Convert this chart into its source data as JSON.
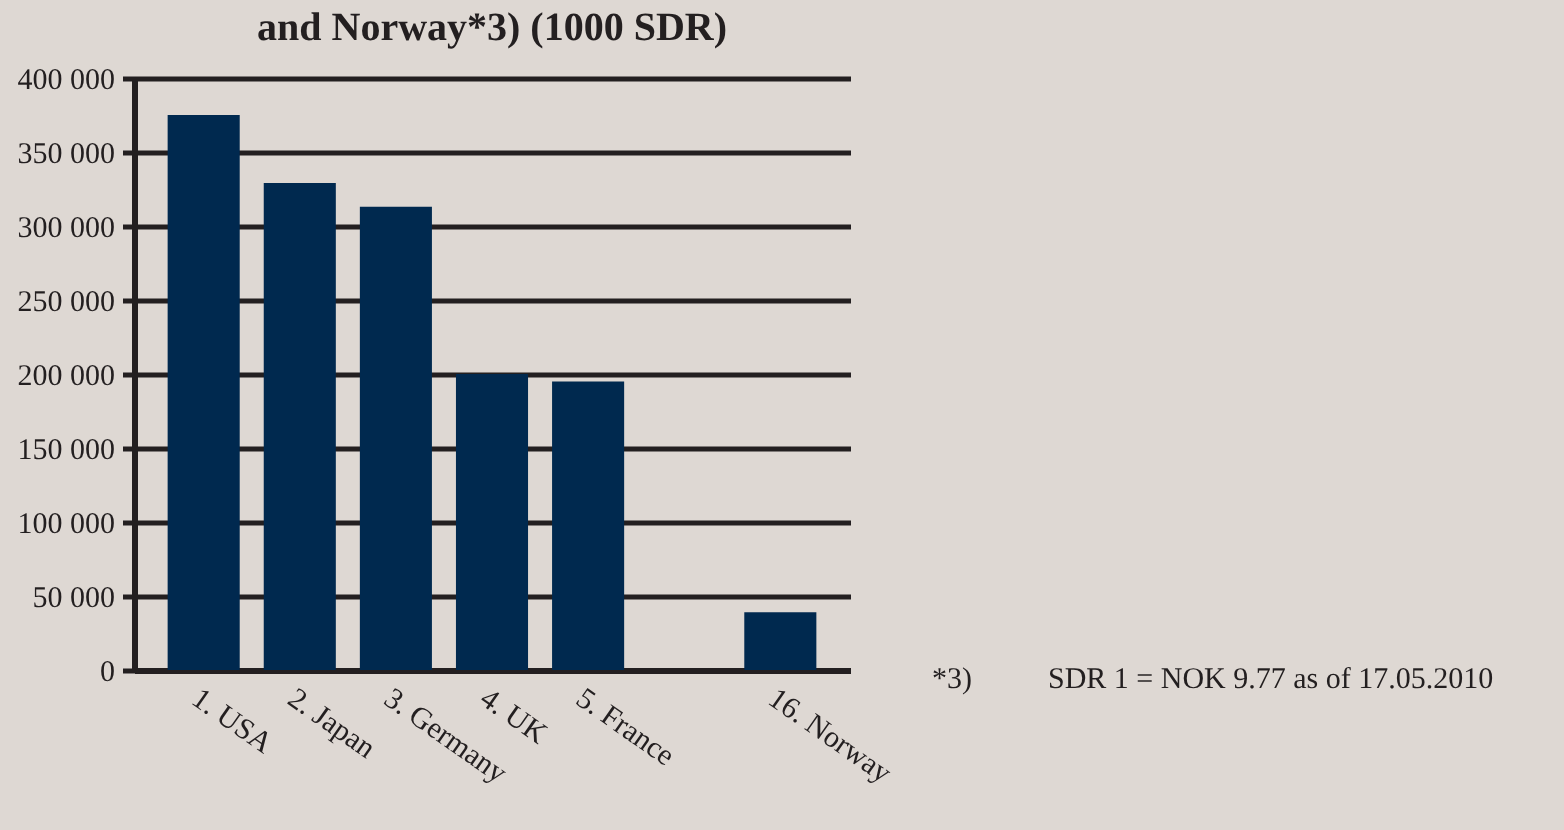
{
  "chart_data": {
    "type": "bar",
    "title": "and Norway*3) (1000 SDR)",
    "categories": [
      "1. USA",
      "2. Japan",
      "3. Germany",
      "4. UK",
      "5. France",
      null,
      "16. Norway"
    ],
    "values": [
      375000,
      329000,
      313000,
      200000,
      195000,
      null,
      39000
    ],
    "color": "#00294f",
    "ylim": [
      0,
      400000
    ],
    "yticks": [
      0,
      {
        "value": 50000,
        "label": "50 000"
      },
      {
        "value": 100000,
        "label": "100 000"
      },
      {
        "value": 150000,
        "label": "150 000"
      },
      {
        "value": 200000,
        "label": "200 000"
      },
      {
        "value": 250000,
        "label": "250 000"
      },
      {
        "value": 300000,
        "label": "300 000"
      },
      {
        "value": 350000,
        "label": "350 000"
      },
      {
        "value": 400000,
        "label": "400 000"
      }
    ],
    "grid": "y",
    "annotations": [
      "*3)",
      "SDR 1 = NOK 9.77 as of 17.05.2010"
    ]
  }
}
